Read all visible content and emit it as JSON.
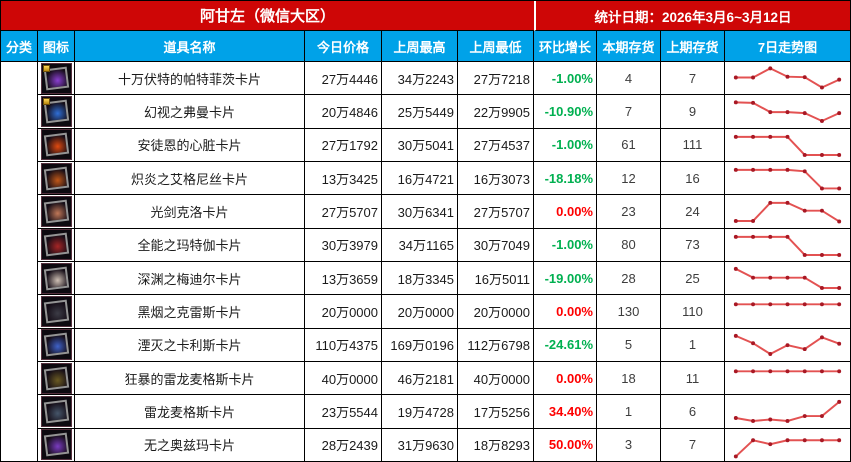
{
  "title_bar": {
    "region_title": "阿甘左（微信大区）",
    "stats_date": "统计日期：2026年3月6~3月12日"
  },
  "colors": {
    "title_red": "#ce0606",
    "header_blue": "#00a2e8",
    "pct_up_red": "#fe0000",
    "pct_down_green": "#00b050",
    "spark_line": "#e35252",
    "spark_dot": "#a81824"
  },
  "columns": [
    {
      "key": "cat",
      "label": "分类"
    },
    {
      "key": "icon",
      "label": "图标"
    },
    {
      "key": "name",
      "label": "道具名称"
    },
    {
      "key": "today",
      "label": "今日价格"
    },
    {
      "key": "high",
      "label": "上周最高"
    },
    {
      "key": "low",
      "label": "上周最低"
    },
    {
      "key": "pct",
      "label": "环比增长"
    },
    {
      "key": "snow",
      "label": "本期存货"
    },
    {
      "key": "sprev",
      "label": "上期存货"
    },
    {
      "key": "trend",
      "label": "7日走势图"
    }
  ],
  "rows": [
    {
      "name": "十万伏特的帕特菲茨卡片",
      "today": "27万4446",
      "week_high": "34万2243",
      "week_low": "27万7218",
      "pct": "-1.00%",
      "pct_dir": "down",
      "stock_now": "4",
      "stock_prev": "7",
      "icon_color": "#8a3fd0",
      "badge": true,
      "trend": [
        55,
        55,
        92,
        58,
        56,
        14,
        46
      ]
    },
    {
      "name": "幻视之弗曼卡片",
      "today": "20万4846",
      "week_high": "25万5449",
      "week_low": "22万9905",
      "pct": "-10.90%",
      "pct_dir": "down",
      "stock_now": "7",
      "stock_prev": "9",
      "icon_color": "#2f6fd6",
      "badge": true,
      "trend": [
        88,
        86,
        48,
        48,
        44,
        12,
        44
      ]
    },
    {
      "name": "安徒恩的心脏卡片",
      "today": "27万1792",
      "week_high": "30万5041",
      "week_low": "27万4537",
      "pct": "-1.00%",
      "pct_dir": "down",
      "stock_now": "61",
      "stock_prev": "111",
      "icon_color": "#e04a10",
      "badge": false,
      "trend": [
        86,
        86,
        86,
        86,
        12,
        12,
        12
      ]
    },
    {
      "name": "炽炎之艾格尼丝卡片",
      "today": "13万3425",
      "week_high": "16万4721",
      "week_low": "16万3073",
      "pct": "-18.18%",
      "pct_dir": "down",
      "stock_now": "12",
      "stock_prev": "16",
      "icon_color": "#c05818",
      "badge": false,
      "trend": [
        86,
        86,
        86,
        86,
        80,
        10,
        10
      ]
    },
    {
      "name": "光剑克洛卡片",
      "today": "27万5707",
      "week_high": "30万6341",
      "week_low": "27万5707",
      "pct": "0.00%",
      "pct_dir": "zero",
      "stock_now": "23",
      "stock_prev": "24",
      "icon_color": "#c07858",
      "badge": false,
      "trend": [
        12,
        12,
        86,
        86,
        54,
        54,
        10
      ]
    },
    {
      "name": "全能之玛特伽卡片",
      "today": "30万3979",
      "week_high": "34万1165",
      "week_low": "30万7049",
      "pct": "-1.00%",
      "pct_dir": "down",
      "stock_now": "80",
      "stock_prev": "73",
      "icon_color": "#a62626",
      "badge": false,
      "trend": [
        86,
        86,
        86,
        86,
        12,
        12,
        12
      ]
    },
    {
      "name": "深渊之梅迪尔卡片",
      "today": "13万3659",
      "week_high": "18万3345",
      "week_low": "16万5011",
      "pct": "-19.00%",
      "pct_dir": "down",
      "stock_now": "28",
      "stock_prev": "25",
      "icon_color": "#cfc0b4",
      "badge": false,
      "trend": [
        90,
        54,
        54,
        54,
        54,
        12,
        12
      ]
    },
    {
      "name": "黑烟之克雷斯卡片",
      "today": "20万0000",
      "week_high": "20万0000",
      "week_low": "20万0000",
      "pct": "0.00%",
      "pct_dir": "zero",
      "stock_now": "130",
      "stock_prev": "110",
      "icon_color": "#3c3c46",
      "badge": false,
      "trend": [
        80,
        80,
        80,
        80,
        80,
        80,
        80
      ]
    },
    {
      "name": "湮灭之卡利斯卡片",
      "today": "110万4375",
      "week_high": "169万0196",
      "week_low": "112万6798",
      "pct": "-24.61%",
      "pct_dir": "down",
      "stock_now": "5",
      "stock_prev": "1",
      "icon_color": "#3f62c8",
      "badge": false,
      "trend": [
        90,
        60,
        16,
        52,
        36,
        84,
        58
      ]
    },
    {
      "name": "狂暴的雷龙麦格斯卡片",
      "today": "40万0000",
      "week_high": "46万2181",
      "week_low": "40万0000",
      "pct": "0.00%",
      "pct_dir": "zero",
      "stock_now": "18",
      "stock_prev": "11",
      "icon_color": "#6a5a22",
      "badge": false,
      "trend": [
        80,
        80,
        80,
        80,
        80,
        80,
        80
      ]
    },
    {
      "name": "雷龙麦格斯卡片",
      "today": "23万5544",
      "week_high": "19万4728",
      "week_low": "17万5256",
      "pct": "34.40%",
      "pct_dir": "up",
      "stock_now": "1",
      "stock_prev": "6",
      "icon_color": "#46566a",
      "badge": false,
      "trend": [
        24,
        12,
        18,
        12,
        32,
        32,
        90
      ]
    },
    {
      "name": "无之奥兹玛卡片",
      "today": "28万2439",
      "week_high": "31万9630",
      "week_low": "18万8293",
      "pct": "50.00%",
      "pct_dir": "up",
      "stock_now": "3",
      "stock_prev": "7",
      "icon_color": "#7a3cc0",
      "badge": false,
      "trend": [
        6,
        72,
        56,
        72,
        72,
        72,
        72
      ]
    }
  ]
}
